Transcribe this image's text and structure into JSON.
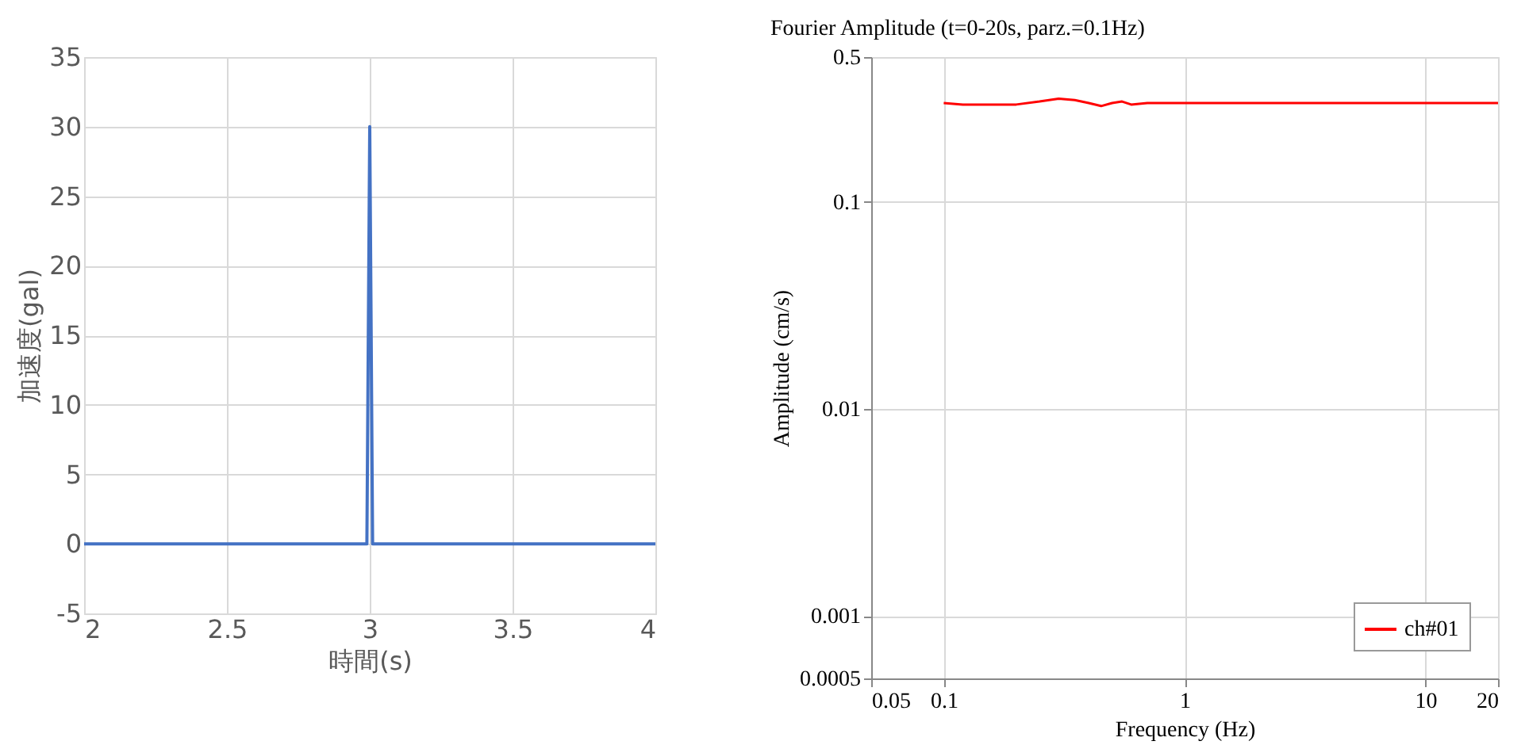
{
  "chart_data": [
    {
      "type": "line",
      "xlabel": "時間(s)",
      "ylabel": "加速度(gal)",
      "series": [
        {
          "color": "#4472c4",
          "x": [
            2,
            2.99,
            3.0,
            3.01,
            4
          ],
          "values": [
            0,
            0,
            30,
            0,
            0
          ]
        }
      ],
      "xlim": [
        2,
        4
      ],
      "xticks": [
        2,
        2.5,
        3,
        3.5,
        4
      ],
      "ylim": [
        -5,
        35
      ],
      "yticks": [
        -5,
        0,
        5,
        10,
        15,
        20,
        25,
        30,
        35
      ],
      "grid": true,
      "legend": false
    },
    {
      "type": "line",
      "title": "Fourier Amplitude (t=0-20s, parz.=0.1Hz)",
      "xlabel": "Frequency  (Hz)",
      "ylabel": "Amplitude (cm/s)",
      "series": [
        {
          "name": "ch#01",
          "color": "#ff0000",
          "x": [
            0.1,
            0.12,
            0.15,
            0.2,
            0.25,
            0.3,
            0.35,
            0.4,
            0.45,
            0.5,
            0.55,
            0.6,
            0.7,
            0.8,
            1,
            1.5,
            2,
            3,
            5,
            10,
            20
          ],
          "values": [
            0.3,
            0.295,
            0.295,
            0.295,
            0.305,
            0.315,
            0.31,
            0.3,
            0.29,
            0.3,
            0.305,
            0.295,
            0.3,
            0.3,
            0.3,
            0.3,
            0.3,
            0.3,
            0.3,
            0.3,
            0.3
          ]
        }
      ],
      "xlim": [
        0.05,
        20
      ],
      "xticks": [
        0.05,
        0.1,
        1,
        10,
        20
      ],
      "ylim": [
        0.0005,
        0.5
      ],
      "yticks": [
        0.0005,
        0.001,
        0.01,
        0.1,
        0.5
      ],
      "log": "xy",
      "grid": true,
      "legend": "bottom right"
    }
  ]
}
